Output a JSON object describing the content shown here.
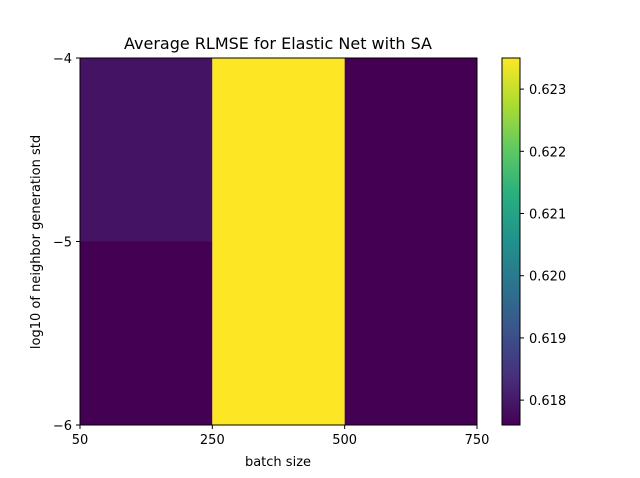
{
  "chart_data": {
    "type": "heatmap",
    "title": "Average RLMSE for Elastic Net with SA",
    "xlabel": "batch size",
    "ylabel": "log10 of neighbor generation std",
    "x_edges": [
      50,
      250,
      500,
      750
    ],
    "y_edges": [
      -6,
      -5,
      -4
    ],
    "x_tick_labels": [
      "50",
      "250",
      "500",
      "750"
    ],
    "y_tick_labels": [
      "−6",
      "−5",
      "−4"
    ],
    "x_ticks": [
      50,
      250,
      500,
      750
    ],
    "y_ticks": [
      -6,
      -5,
      -4
    ],
    "cells": [
      {
        "x0": 50,
        "x1": 250,
        "y0": -5,
        "y1": -4,
        "value": 0.6179
      },
      {
        "x0": 250,
        "x1": 500,
        "y0": -5,
        "y1": -4,
        "value": 0.6235
      },
      {
        "x0": 500,
        "x1": 750,
        "y0": -5,
        "y1": -4,
        "value": 0.6176
      },
      {
        "x0": 50,
        "x1": 250,
        "y0": -6,
        "y1": -5,
        "value": 0.6176
      },
      {
        "x0": 250,
        "x1": 500,
        "y0": -6,
        "y1": -5,
        "value": 0.6235
      },
      {
        "x0": 500,
        "x1": 750,
        "y0": -6,
        "y1": -5,
        "value": 0.6176
      }
    ],
    "colorbar": {
      "colormap": "viridis",
      "vmin": 0.6176,
      "vmax": 0.6235,
      "ticks": [
        0.618,
        0.619,
        0.62,
        0.621,
        0.622,
        0.623
      ],
      "tick_labels": [
        "0.618",
        "0.619",
        "0.620",
        "0.621",
        "0.622",
        "0.623"
      ]
    }
  }
}
